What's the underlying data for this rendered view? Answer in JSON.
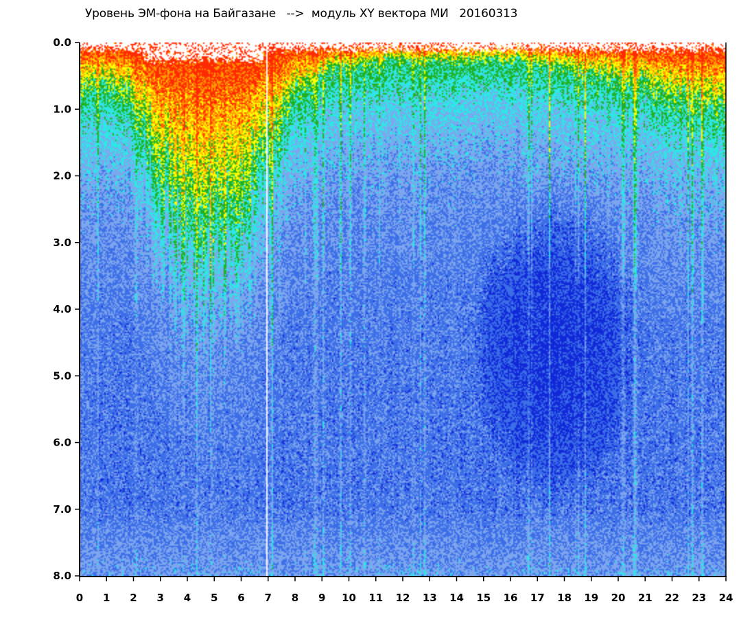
{
  "chart_data": {
    "type": "heatmap",
    "title": "Уровень ЭМ-фона на Байгазане   -->  модуль XY вектора МИ   20160313",
    "xlabel": "",
    "ylabel": "",
    "xlim": [
      0,
      24
    ],
    "ylim": [
      8.0,
      0.0
    ],
    "y_inverted": true,
    "grid": false,
    "legend": "none",
    "x_ticks": [
      "0",
      "1",
      "2",
      "3",
      "4",
      "5",
      "6",
      "7",
      "8",
      "9",
      "10",
      "11",
      "12",
      "13",
      "14",
      "15",
      "16",
      "17",
      "18",
      "19",
      "20",
      "21",
      "22",
      "23",
      "24"
    ],
    "y_ticks": [
      "0.0",
      "1.0",
      "2.0",
      "3.0",
      "4.0",
      "5.0",
      "6.0",
      "7.0",
      "8.0"
    ],
    "colormap": [
      "#1028d8",
      "#3c6ee8",
      "#7ea6ee",
      "#2ee6e6",
      "#20b020",
      "#ffff00",
      "#ff9a00",
      "#ff2a00"
    ],
    "hot_zone_depth_by_hour": {
      "x": [
        0,
        1,
        2,
        3,
        4,
        5,
        6,
        7,
        8,
        9,
        10,
        11,
        12,
        13,
        14,
        15,
        16,
        17,
        18,
        19,
        20,
        21,
        22,
        23,
        24
      ],
      "y": [
        0.8,
        0.7,
        0.9,
        2.1,
        2.8,
        3.0,
        2.6,
        1.6,
        0.9,
        0.5,
        0.45,
        0.3,
        0.3,
        0.3,
        0.3,
        0.3,
        0.3,
        0.35,
        0.4,
        0.55,
        0.6,
        0.75,
        0.9,
        1.0,
        1.2
      ]
    },
    "quiet_zone": {
      "x": [
        14.5,
        21
      ],
      "y": [
        2.0,
        7.0
      ]
    },
    "blank_lines_x": [
      6.95
    ]
  }
}
